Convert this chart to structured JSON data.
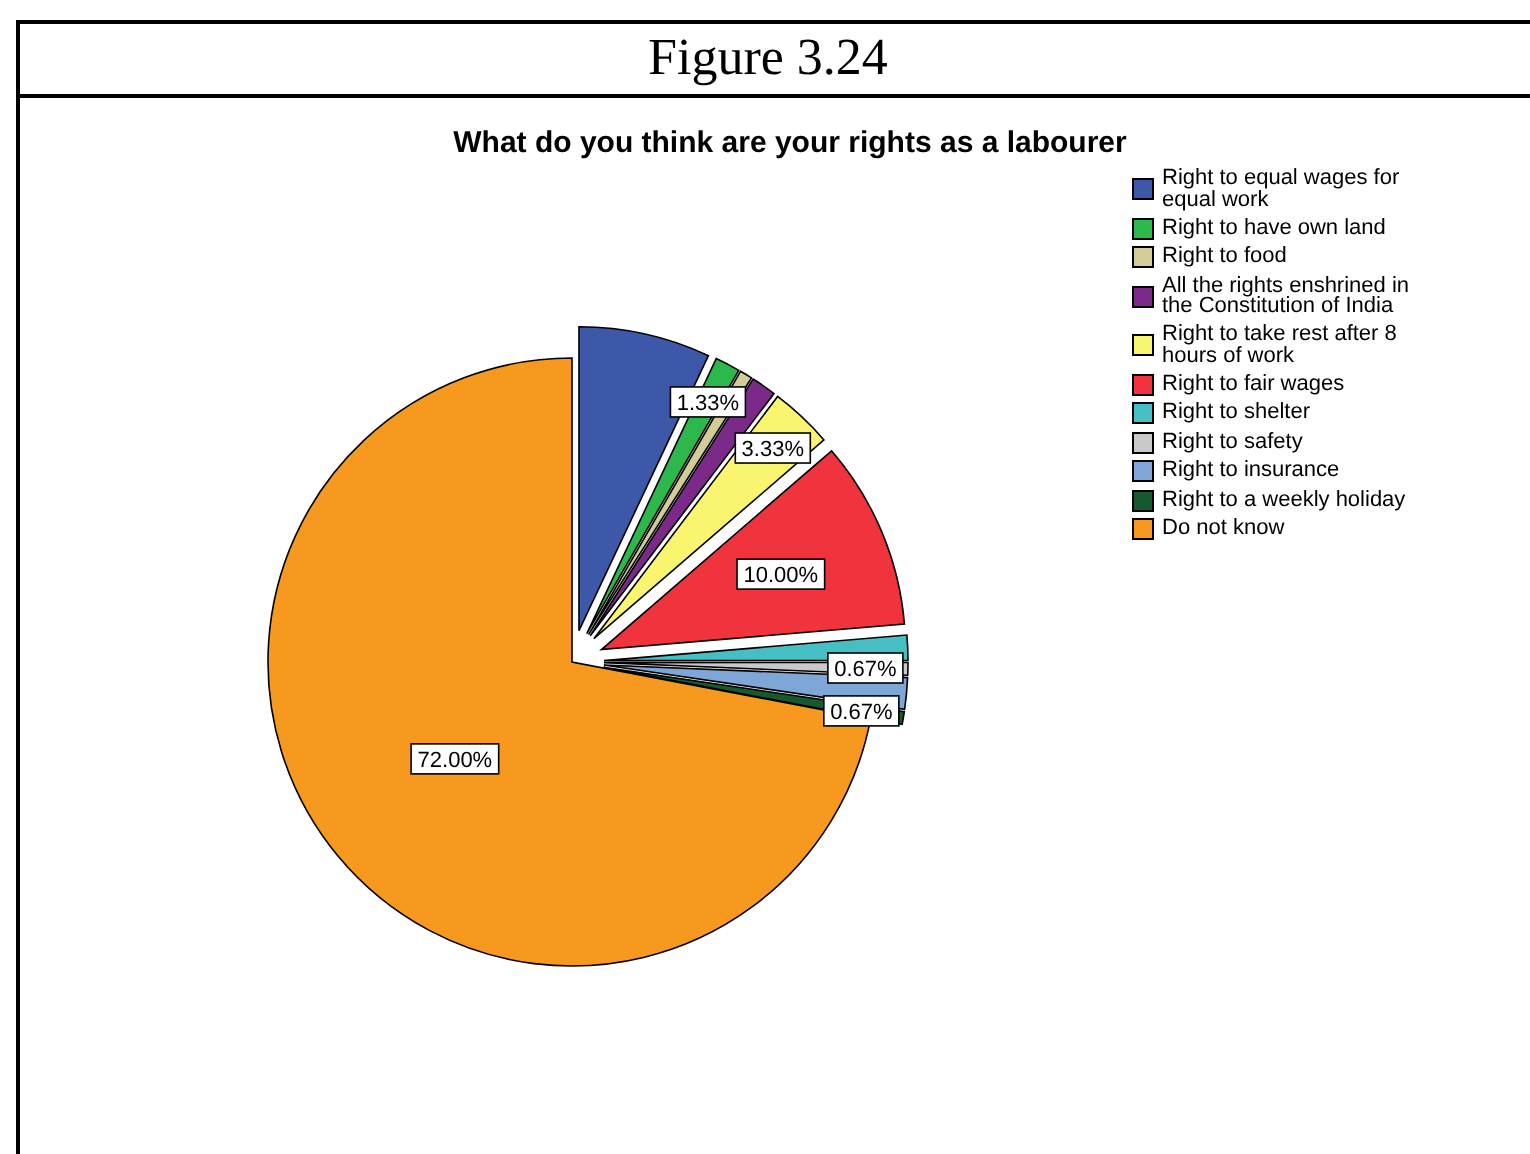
{
  "chart_data": {
    "type": "pie",
    "title": "What do you think are your rights as a labourer",
    "annotations": [
      "Figure 3.24"
    ],
    "categories": [
      "Right to equal wages for equal work",
      "Right to have own land",
      "Right to food",
      "All the rights enshrined in the Constitution of India",
      "Right to take rest after 8 hours of work",
      "Right to fair wages",
      "Right to shelter",
      "Right to safety",
      "Right to insurance",
      "Right to a weekly holiday",
      "Do not know"
    ],
    "values": [
      7.0,
      1.33,
      0.67,
      1.33,
      3.33,
      10.0,
      1.33,
      0.67,
      1.67,
      0.67,
      72.0
    ],
    "colors": [
      "#3d58a8",
      "#2db84c",
      "#d4cc98",
      "#7b2a8a",
      "#f9f56f",
      "#f0333c",
      "#45bec4",
      "#c9c9c9",
      "#7ea7d8",
      "#16592e",
      "#f7991f"
    ],
    "value_labels": [
      null,
      "1.33%",
      null,
      null,
      "3.33%",
      "10.00%",
      null,
      "0.67%",
      null,
      "0.67%",
      "72.00%"
    ],
    "legend": "top right"
  }
}
